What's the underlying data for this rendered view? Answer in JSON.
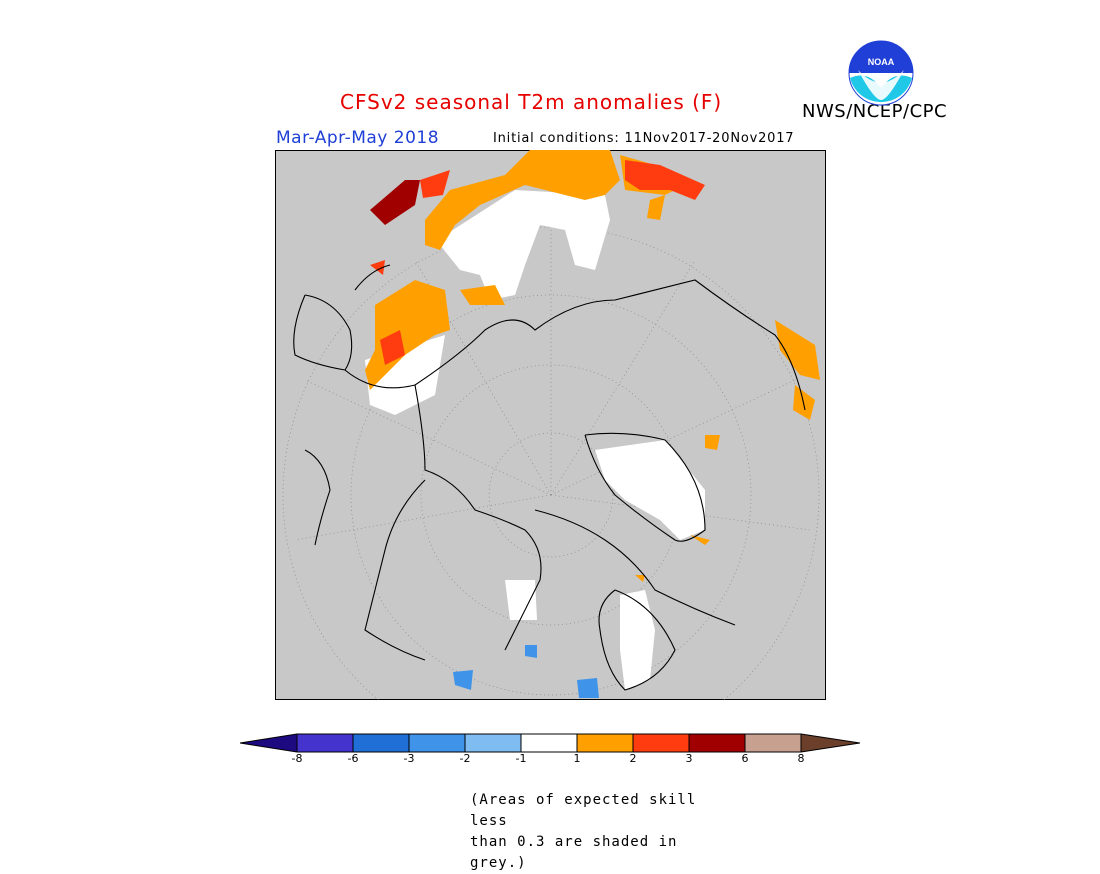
{
  "title": "CFSv2 seasonal T2m anomalies (F)",
  "period": "Mar-Apr-May 2018",
  "initial_conditions": "Initial conditions: 11Nov2017-20Nov2017",
  "agency": "NWS/NCEP/CPC",
  "logo": {
    "text": "NOAA",
    "icon": "noaa-logo"
  },
  "note_lines": [
    "(Areas of expected skill less",
    "than 0.3 are shaded in grey.)"
  ],
  "colors": {
    "skill_grey": "#c8c8c8",
    "land_outline": "#000000"
  },
  "legend": {
    "ticks": [
      "-8",
      "-6",
      "-3",
      "-2",
      "-1",
      "1",
      "2",
      "3",
      "6",
      "8"
    ],
    "bins": [
      {
        "range": "< -8",
        "color": "#1e0a80"
      },
      {
        "range": "-8 to -6",
        "color": "#4433cc"
      },
      {
        "range": "-6 to -3",
        "color": "#1f6fd6"
      },
      {
        "range": "-3 to -2",
        "color": "#3f94ea"
      },
      {
        "range": "-2 to -1",
        "color": "#7fbcf2"
      },
      {
        "range": "-1 to 1",
        "color": "#ffffff"
      },
      {
        "range": "1 to 2",
        "color": "#ff9f00"
      },
      {
        "range": "2 to 3",
        "color": "#ff3c10"
      },
      {
        "range": "3 to 6",
        "color": "#a00000"
      },
      {
        "range": "6 to 8",
        "color": "#c8a090"
      },
      {
        "range": "> 8",
        "color": "#6b3f2a"
      }
    ]
  }
}
